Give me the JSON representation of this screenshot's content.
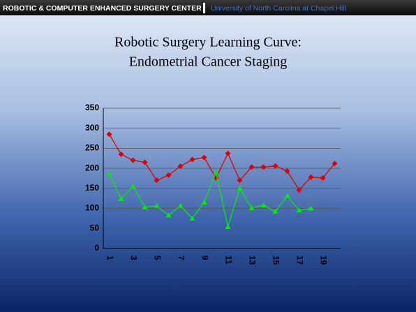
{
  "header": {
    "left": "ROBOTIC & COMPUTER ENHANCED SURGERY CENTER",
    "right": "University of North Carolina at Chapel Hill"
  },
  "chart_data": {
    "type": "line",
    "title": "Robotic Surgery Learning Curve:",
    "subtitle": "Endometrial Cancer Staging",
    "categories": [
      "1",
      null,
      "3",
      null,
      "5",
      null,
      "7",
      null,
      "9",
      null,
      "11",
      null,
      "13",
      null,
      "15",
      null,
      "17",
      null,
      "19",
      null
    ],
    "series": [
      {
        "color": "#e00000",
        "marker": "diamond",
        "values": [
          285,
          235,
          220,
          215,
          170,
          183,
          205,
          222,
          227,
          176,
          237,
          170,
          203,
          203,
          206,
          193,
          146,
          178,
          176,
          212
        ]
      },
      {
        "color": "#00ee00",
        "marker": "triangle",
        "values": [
          186,
          124,
          155,
          103,
          106,
          83,
          106,
          75,
          115,
          190,
          54,
          150,
          101,
          108,
          92,
          131,
          95,
          100,
          null,
          null
        ]
      }
    ],
    "ylim": [
      0,
      350
    ],
    "yticks": [
      0,
      50,
      100,
      150,
      200,
      250,
      300,
      350
    ],
    "grid": true
  }
}
